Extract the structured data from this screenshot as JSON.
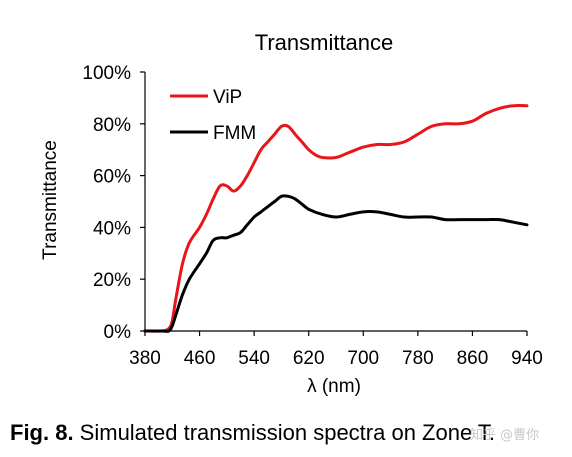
{
  "chart_data": {
    "type": "line",
    "title": "Transmittance",
    "xlabel": "λ (nm)",
    "ylabel": "Transmittance",
    "xlim": [
      380,
      940
    ],
    "ylim": [
      0,
      100
    ],
    "x_ticks": [
      "380",
      "460",
      "540",
      "620",
      "700",
      "780",
      "860",
      "940"
    ],
    "y_ticks": [
      "0%",
      "20%",
      "40%",
      "60%",
      "80%",
      "100%"
    ],
    "grid": false,
    "legend_position": "top-left",
    "series": [
      {
        "name": "ViP",
        "color": "#e8151b",
        "x": [
          380,
          405,
          415,
          420,
          425,
          435,
          445,
          460,
          470,
          480,
          490,
          500,
          510,
          520,
          530,
          540,
          550,
          560,
          570,
          580,
          590,
          600,
          610,
          620,
          630,
          640,
          660,
          680,
          700,
          720,
          740,
          760,
          780,
          800,
          820,
          840,
          860,
          880,
          900,
          920,
          940
        ],
        "y": [
          0,
          0,
          1,
          4,
          12,
          26,
          34,
          40,
          45,
          51,
          56,
          56,
          54,
          56,
          60,
          65,
          70,
          73,
          76,
          79,
          79,
          76,
          73,
          70,
          68,
          67,
          67,
          69,
          71,
          72,
          72,
          73,
          76,
          79,
          80,
          80,
          81,
          84,
          86,
          87,
          87
        ]
      },
      {
        "name": "FMM",
        "color": "#000000",
        "x": [
          380,
          405,
          415,
          420,
          425,
          435,
          445,
          460,
          470,
          480,
          490,
          500,
          510,
          520,
          530,
          540,
          550,
          560,
          570,
          580,
          590,
          600,
          610,
          620,
          640,
          660,
          680,
          700,
          720,
          740,
          760,
          780,
          800,
          820,
          840,
          860,
          880,
          900,
          920,
          940
        ],
        "y": [
          0,
          0,
          0,
          2,
          6,
          14,
          20,
          26,
          30,
          35,
          36,
          36,
          37,
          38,
          41,
          44,
          46,
          48,
          50,
          52,
          52,
          51,
          49,
          47,
          45,
          44,
          45,
          46,
          46,
          45,
          44,
          44,
          44,
          43,
          43,
          43,
          43,
          43,
          42,
          41
        ]
      }
    ]
  },
  "caption": {
    "label": "Fig. 8.",
    "text": " Simulated transmission spectra on Zone T."
  },
  "watermark": "知乎 @曹你"
}
